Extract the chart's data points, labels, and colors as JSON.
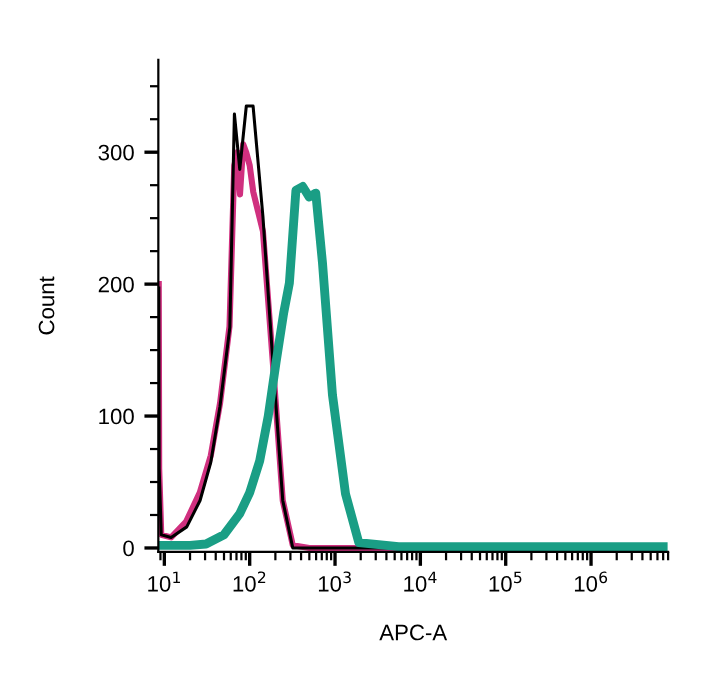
{
  "chart_data": {
    "type": "line",
    "xlabel": "APC-A",
    "ylabel": "Count",
    "log": "x",
    "xlim": [
      8.5,
      8000000
    ],
    "xticks": [
      {
        "value": 10,
        "label": "10$^{1}$"
      },
      {
        "value": 100,
        "label": "10$^{2}$"
      },
      {
        "value": 1000,
        "label": "10$^{3}$"
      },
      {
        "value": 10000,
        "label": "10$^{4}$"
      },
      {
        "value": 100000,
        "label": "10$^{5}$"
      },
      {
        "value": 1000000,
        "label": "10$^{6}$"
      }
    ],
    "ylim": [
      -3,
      370
    ],
    "yticks": [
      0,
      100,
      200,
      300
    ],
    "grid": false,
    "legend": false,
    "marker": "none",
    "line_style": "solid",
    "series": [
      {
        "color": "#d0307f",
        "x": [
          8.6,
          8.7,
          9.2,
          12,
          18,
          26,
          35,
          45,
          58,
          66,
          72,
          77,
          84,
          91,
          100,
          110,
          143,
          187,
          244,
          320,
          500,
          7000000
        ],
        "values": [
          200,
          60,
          10,
          8,
          20,
          42,
          70,
          110,
          168,
          290,
          300,
          268,
          306,
          300,
          290,
          270,
          240,
          140,
          36,
          2,
          0,
          0
        ]
      },
      {
        "color": "#000000",
        "x": [
          8.6,
          8.7,
          9.2,
          12,
          18.3,
          26.2,
          35,
          44.8,
          58.5,
          66.2,
          76.5,
          91.3,
          109.6,
          143,
          187,
          244,
          320,
          500,
          7000000
        ],
        "values": [
          197,
          60,
          10,
          8,
          16,
          36,
          65,
          107,
          167,
          329,
          287,
          335,
          335,
          251,
          141,
          36,
          0,
          0,
          0
        ]
      },
      {
        "color": "#1a9e85",
        "x": [
          8.6,
          20,
          30.8,
          50,
          76.5,
          100,
          131,
          165,
          204,
          250,
          292,
          348,
          418,
          499,
          595,
          713,
          933,
          1327,
          1900,
          5550,
          7000000
        ],
        "values": [
          2,
          2,
          3,
          10,
          26,
          42,
          66,
          100,
          141,
          178,
          201,
          271,
          274,
          266,
          269,
          216,
          116,
          41,
          4,
          1,
          1
        ]
      }
    ]
  }
}
